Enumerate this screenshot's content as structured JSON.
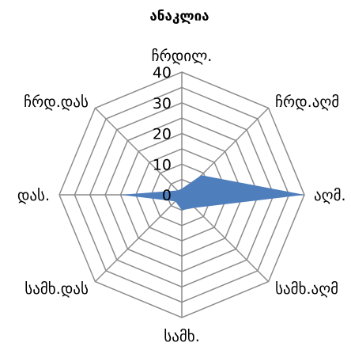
{
  "chart_data": {
    "type": "radar",
    "title": "ანაკლია",
    "categories": [
      "ჩრდილ.",
      "ჩრდ.აღმ",
      "აღმ.",
      "სამხ.აღმ",
      "სამხ.",
      "სამხ.დას",
      "დას.",
      "ჩრდ.დას"
    ],
    "series": [
      {
        "values": [
          2,
          9,
          40,
          6,
          5,
          3,
          20,
          2
        ],
        "color": "#4f7ebd"
      }
    ],
    "ticks": [
      "0",
      "10",
      "20",
      "30",
      "40"
    ],
    "rlim": [
      0,
      40
    ],
    "grid": true
  }
}
